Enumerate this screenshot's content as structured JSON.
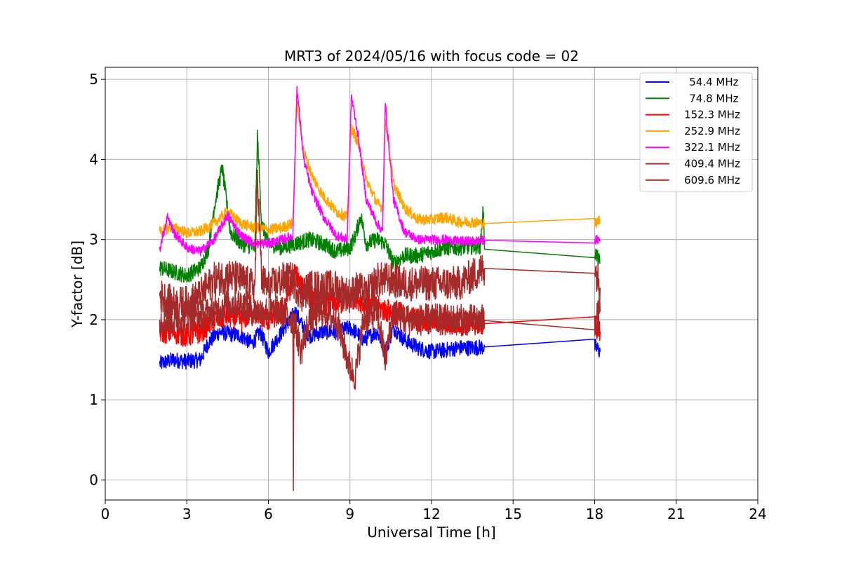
{
  "chart_data": {
    "type": "line",
    "title": "MRT3 of 2024/05/16 with focus code = 02",
    "xlabel": "Universal Time [h]",
    "ylabel": "Y-factor [dB]",
    "xlim": [
      0,
      24
    ],
    "ylim": [
      -0.25,
      5.15
    ],
    "xticks": [
      0,
      3,
      6,
      9,
      12,
      15,
      18,
      21,
      24
    ],
    "yticks": [
      0,
      1,
      2,
      3,
      4,
      5
    ],
    "grid": true,
    "legend_position": "top-right",
    "series": [
      {
        "name": " 54.4 MHz",
        "color": "#0000ff",
        "noise": 0.1,
        "points": [
          [
            2.0,
            1.45
          ],
          [
            2.5,
            1.5
          ],
          [
            3.0,
            1.48
          ],
          [
            3.5,
            1.5
          ],
          [
            3.8,
            1.72
          ],
          [
            4.2,
            1.85
          ],
          [
            4.6,
            1.82
          ],
          [
            5.0,
            1.8
          ],
          [
            5.4,
            1.7
          ],
          [
            5.7,
            1.85
          ],
          [
            6.0,
            1.6
          ],
          [
            6.3,
            1.75
          ],
          [
            6.6,
            1.9
          ],
          [
            7.0,
            2.1
          ],
          [
            7.2,
            1.95
          ],
          [
            7.5,
            1.8
          ],
          [
            8.0,
            1.85
          ],
          [
            8.5,
            1.85
          ],
          [
            9.0,
            1.9
          ],
          [
            9.2,
            1.85
          ],
          [
            9.5,
            1.75
          ],
          [
            10.0,
            1.85
          ],
          [
            10.3,
            1.6
          ],
          [
            10.6,
            1.9
          ],
          [
            11.0,
            1.75
          ],
          [
            11.5,
            1.65
          ],
          [
            12.0,
            1.6
          ],
          [
            12.5,
            1.62
          ],
          [
            13.0,
            1.65
          ],
          [
            13.5,
            1.65
          ],
          [
            13.95,
            1.66
          ],
          [
            18.0,
            1.67
          ],
          [
            18.2,
            1.6
          ]
        ]
      },
      {
        "name": " 74.8 MHz",
        "color": "#008000",
        "noise": 0.1,
        "points": [
          [
            2.0,
            2.65
          ],
          [
            2.5,
            2.6
          ],
          [
            3.0,
            2.55
          ],
          [
            3.5,
            2.65
          ],
          [
            3.8,
            2.9
          ],
          [
            4.0,
            3.4
          ],
          [
            4.3,
            3.9
          ],
          [
            4.6,
            3.1
          ],
          [
            5.0,
            2.95
          ],
          [
            5.5,
            2.9
          ],
          [
            5.6,
            4.3
          ],
          [
            5.75,
            3.2
          ],
          [
            6.0,
            2.95
          ],
          [
            6.5,
            2.9
          ],
          [
            7.0,
            2.95
          ],
          [
            7.5,
            3.0
          ],
          [
            8.0,
            2.95
          ],
          [
            8.5,
            2.85
          ],
          [
            9.0,
            2.9
          ],
          [
            9.2,
            3.05
          ],
          [
            9.4,
            3.3
          ],
          [
            9.6,
            2.95
          ],
          [
            10.0,
            3.0
          ],
          [
            10.3,
            2.95
          ],
          [
            10.6,
            2.7
          ],
          [
            11.0,
            2.8
          ],
          [
            11.5,
            2.8
          ],
          [
            12.0,
            2.85
          ],
          [
            12.5,
            2.9
          ],
          [
            13.0,
            2.9
          ],
          [
            13.8,
            2.92
          ],
          [
            13.9,
            3.4
          ],
          [
            13.95,
            2.88
          ],
          [
            18.0,
            2.85
          ],
          [
            18.2,
            2.7
          ]
        ]
      },
      {
        "name": "152.3 MHz",
        "color": "#ff0000",
        "noise": 0.15,
        "points": [
          [
            2.0,
            1.85
          ],
          [
            2.5,
            1.85
          ],
          [
            3.0,
            1.8
          ],
          [
            3.5,
            1.85
          ],
          [
            4.0,
            2.0
          ],
          [
            4.5,
            2.05
          ],
          [
            5.0,
            2.0
          ],
          [
            5.5,
            2.1
          ],
          [
            6.0,
            2.0
          ],
          [
            6.5,
            2.1
          ],
          [
            7.0,
            2.6
          ],
          [
            7.2,
            2.4
          ],
          [
            7.5,
            2.3
          ],
          [
            8.0,
            2.2
          ],
          [
            8.5,
            2.2
          ],
          [
            9.0,
            2.25
          ],
          [
            9.2,
            2.3
          ],
          [
            9.5,
            2.2
          ],
          [
            10.0,
            2.15
          ],
          [
            10.5,
            2.1
          ],
          [
            11.0,
            2.05
          ],
          [
            11.5,
            2.0
          ],
          [
            12.0,
            2.0
          ],
          [
            12.5,
            1.95
          ],
          [
            13.0,
            1.95
          ],
          [
            13.95,
            1.95
          ],
          [
            18.0,
            1.94
          ],
          [
            18.2,
            1.85
          ]
        ]
      },
      {
        "name": "252.9 MHz",
        "color": "#ffa500",
        "noise": 0.07,
        "points": [
          [
            2.0,
            3.1
          ],
          [
            2.4,
            3.15
          ],
          [
            2.8,
            3.12
          ],
          [
            3.0,
            3.08
          ],
          [
            3.5,
            3.1
          ],
          [
            4.0,
            3.2
          ],
          [
            4.5,
            3.35
          ],
          [
            5.0,
            3.2
          ],
          [
            5.5,
            3.15
          ],
          [
            6.0,
            3.12
          ],
          [
            6.5,
            3.15
          ],
          [
            6.9,
            3.2
          ],
          [
            7.05,
            4.7
          ],
          [
            7.3,
            4.1
          ],
          [
            7.6,
            3.8
          ],
          [
            8.0,
            3.55
          ],
          [
            8.5,
            3.35
          ],
          [
            8.9,
            3.28
          ],
          [
            9.05,
            4.4
          ],
          [
            9.3,
            4.2
          ],
          [
            9.6,
            3.75
          ],
          [
            10.0,
            3.45
          ],
          [
            10.2,
            3.4
          ],
          [
            10.3,
            4.5
          ],
          [
            10.6,
            3.7
          ],
          [
            11.0,
            3.4
          ],
          [
            11.5,
            3.25
          ],
          [
            12.0,
            3.25
          ],
          [
            12.5,
            3.28
          ],
          [
            13.0,
            3.22
          ],
          [
            13.5,
            3.22
          ],
          [
            13.95,
            3.2
          ],
          [
            18.0,
            3.2
          ],
          [
            18.2,
            3.25
          ]
        ]
      },
      {
        "name": "322.1 MHz",
        "color": "#ff00ff",
        "noise": 0.06,
        "points": [
          [
            2.0,
            2.88
          ],
          [
            2.3,
            3.3
          ],
          [
            2.5,
            3.1
          ],
          [
            3.0,
            2.9
          ],
          [
            3.5,
            2.85
          ],
          [
            4.0,
            3.0
          ],
          [
            4.5,
            3.3
          ],
          [
            5.0,
            3.05
          ],
          [
            5.5,
            2.95
          ],
          [
            6.0,
            2.95
          ],
          [
            6.5,
            3.0
          ],
          [
            6.9,
            3.05
          ],
          [
            7.05,
            4.9
          ],
          [
            7.3,
            4.0
          ],
          [
            7.6,
            3.6
          ],
          [
            8.0,
            3.3
          ],
          [
            8.5,
            3.05
          ],
          [
            8.9,
            3.0
          ],
          [
            9.05,
            4.8
          ],
          [
            9.3,
            4.3
          ],
          [
            9.6,
            3.5
          ],
          [
            10.0,
            3.2
          ],
          [
            10.2,
            3.1
          ],
          [
            10.3,
            4.7
          ],
          [
            10.6,
            3.5
          ],
          [
            11.0,
            3.1
          ],
          [
            11.5,
            3.0
          ],
          [
            12.0,
            3.0
          ],
          [
            12.5,
            3.0
          ],
          [
            13.0,
            2.98
          ],
          [
            13.5,
            2.98
          ],
          [
            13.95,
            2.99
          ],
          [
            18.0,
            2.99
          ],
          [
            18.2,
            3.0
          ]
        ]
      },
      {
        "name": "409.4 MHz",
        "color": "#a52a2a",
        "noise": 0.22,
        "points": [
          [
            2.0,
            2.3
          ],
          [
            2.5,
            2.2
          ],
          [
            3.0,
            2.2
          ],
          [
            3.5,
            2.3
          ],
          [
            4.0,
            2.5
          ],
          [
            4.5,
            2.55
          ],
          [
            5.0,
            2.5
          ],
          [
            5.5,
            2.4
          ],
          [
            5.6,
            3.8
          ],
          [
            5.75,
            2.5
          ],
          [
            6.0,
            2.4
          ],
          [
            6.5,
            2.5
          ],
          [
            6.9,
            2.5
          ],
          [
            7.2,
            2.3
          ],
          [
            7.5,
            2.4
          ],
          [
            8.0,
            2.4
          ],
          [
            8.5,
            2.4
          ],
          [
            9.0,
            2.3
          ],
          [
            9.3,
            2.4
          ],
          [
            9.6,
            2.3
          ],
          [
            10.0,
            2.5
          ],
          [
            10.5,
            2.5
          ],
          [
            11.0,
            2.45
          ],
          [
            11.5,
            2.45
          ],
          [
            12.0,
            2.45
          ],
          [
            12.5,
            2.45
          ],
          [
            13.0,
            2.45
          ],
          [
            13.95,
            2.64
          ],
          [
            18.0,
            2.66
          ],
          [
            18.2,
            2.4
          ]
        ]
      },
      {
        "name": "609.6 MHz",
        "color": "#a52a2a",
        "noise": 0.2,
        "points": [
          [
            2.0,
            2.0
          ],
          [
            2.5,
            2.0
          ],
          [
            3.0,
            2.05
          ],
          [
            3.5,
            2.05
          ],
          [
            4.0,
            2.1
          ],
          [
            4.5,
            2.2
          ],
          [
            5.0,
            2.2
          ],
          [
            5.5,
            2.1
          ],
          [
            6.0,
            2.1
          ],
          [
            6.5,
            2.1
          ],
          [
            6.9,
            2.0
          ],
          [
            6.92,
            0.0
          ],
          [
            6.94,
            2.0
          ],
          [
            7.2,
            1.6
          ],
          [
            7.5,
            2.0
          ],
          [
            8.0,
            2.1
          ],
          [
            8.5,
            2.0
          ],
          [
            9.0,
            1.4
          ],
          [
            9.2,
            1.3
          ],
          [
            9.5,
            2.0
          ],
          [
            10.0,
            2.1
          ],
          [
            10.3,
            1.5
          ],
          [
            10.6,
            2.1
          ],
          [
            11.0,
            2.0
          ],
          [
            11.5,
            2.0
          ],
          [
            12.0,
            2.0
          ],
          [
            12.5,
            2.0
          ],
          [
            13.0,
            2.0
          ],
          [
            13.95,
            1.99
          ],
          [
            18.0,
            1.97
          ],
          [
            18.2,
            2.1
          ]
        ]
      }
    ]
  }
}
